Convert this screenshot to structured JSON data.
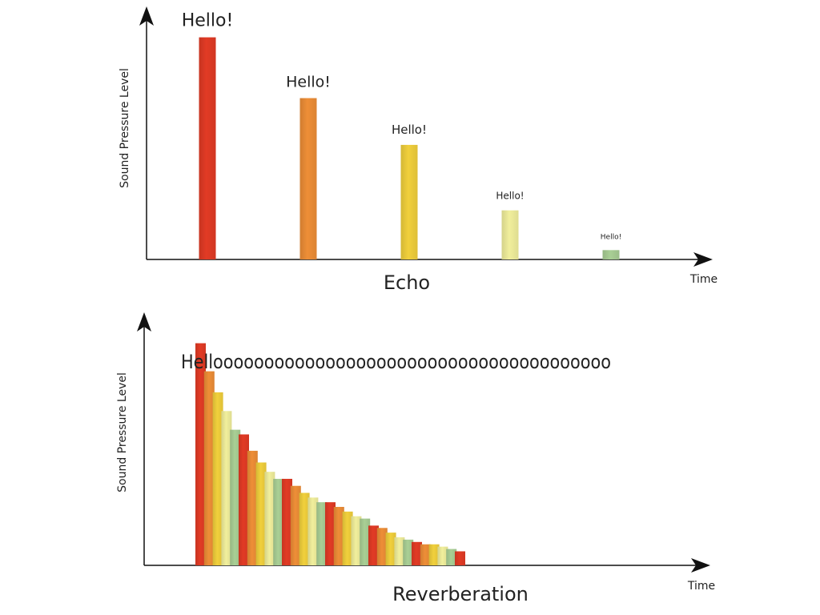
{
  "palette": {
    "red": "#e23b25",
    "orange": "#ee8e37",
    "yellow": "#f1d03c",
    "pale_yellow": "#f1ef9c",
    "sage": "#a9cf95",
    "axis": "#111111",
    "text": "#222222"
  },
  "echo": {
    "title": "Echo",
    "y_axis_label": "Sound Pressure Level",
    "x_axis_label": "Time",
    "hellos": [
      {
        "text": "Hello!",
        "level": 0.95,
        "color": "red"
      },
      {
        "text": "Hello!",
        "level": 0.69,
        "color": "orange"
      },
      {
        "text": "Hello!",
        "level": 0.49,
        "color": "yellow"
      },
      {
        "text": "Hello!",
        "level": 0.21,
        "color": "pale_yellow"
      },
      {
        "text": "Hello!",
        "level": 0.04,
        "color": "sage"
      }
    ]
  },
  "reverberation": {
    "title": "Reverberation",
    "y_axis_label": "Sound Pressure Level",
    "x_axis_label": "Time",
    "word": "Hellooooooooooooooooooooooooooooooooooooooo",
    "reflection_levels": [
      0.95,
      0.83,
      0.74,
      0.66,
      0.58,
      0.56,
      0.49,
      0.44,
      0.4,
      0.37,
      0.37,
      0.34,
      0.31,
      0.29,
      0.27,
      0.27,
      0.25,
      0.23,
      0.21,
      0.2,
      0.17,
      0.16,
      0.14,
      0.12,
      0.11,
      0.1,
      0.09,
      0.09,
      0.08,
      0.07,
      0.06
    ],
    "reflection_colors": [
      "red",
      "orange",
      "yellow",
      "pale_yellow",
      "sage"
    ]
  }
}
